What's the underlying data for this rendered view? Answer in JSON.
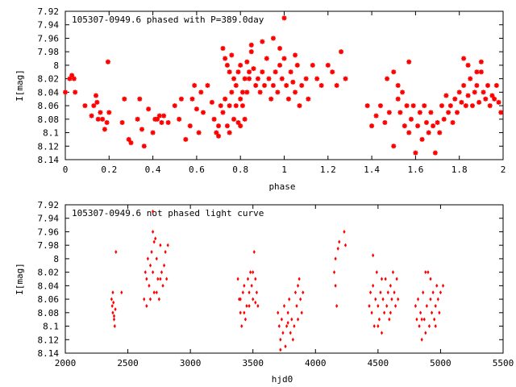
{
  "chart_data": [
    {
      "type": "scatter",
      "title": "105307-0949.6 phased with P=389.0day",
      "xlabel": "phase",
      "ylabel": "I[mag]",
      "xlim": [
        0,
        2
      ],
      "ylim": [
        8.14,
        7.92
      ],
      "y_inverted": true,
      "grid": false,
      "marker_color": "#ff0000",
      "marker": "star",
      "x_ticks": [
        "0",
        "0.2",
        "0.4",
        "0.6",
        "0.8",
        "1",
        "1.2",
        "1.4",
        "1.6",
        "1.8",
        "2"
      ],
      "y_ticks": [
        "7.92",
        "7.94",
        "7.96",
        "7.98",
        "8",
        "8.02",
        "8.04",
        "8.06",
        "8.08",
        "8.1",
        "8.12",
        "8.14"
      ],
      "points": [
        [
          0.0,
          8.04
        ],
        [
          0.02,
          8.02
        ],
        [
          0.03,
          8.015
        ],
        [
          0.04,
          8.02
        ],
        [
          0.045,
          8.04
        ],
        [
          0.09,
          8.06
        ],
        [
          0.12,
          8.075
        ],
        [
          0.13,
          8.06
        ],
        [
          0.14,
          8.045
        ],
        [
          0.145,
          8.055
        ],
        [
          0.15,
          8.08
        ],
        [
          0.16,
          8.07
        ],
        [
          0.17,
          8.08
        ],
        [
          0.18,
          8.095
        ],
        [
          0.2,
          8.07
        ],
        [
          0.19,
          8.085
        ],
        [
          0.195,
          7.995
        ],
        [
          0.26,
          8.085
        ],
        [
          0.27,
          8.05
        ],
        [
          0.29,
          8.11
        ],
        [
          0.3,
          8.115
        ],
        [
          0.33,
          8.08
        ],
        [
          0.34,
          8.05
        ],
        [
          0.35,
          8.095
        ],
        [
          0.36,
          8.12
        ],
        [
          0.38,
          8.065
        ],
        [
          0.4,
          8.1
        ],
        [
          0.41,
          8.08
        ],
        [
          0.42,
          8.08
        ],
        [
          0.43,
          8.075
        ],
        [
          0.44,
          8.085
        ],
        [
          0.45,
          8.075
        ],
        [
          0.47,
          8.085
        ],
        [
          0.5,
          8.06
        ],
        [
          0.52,
          8.08
        ],
        [
          0.53,
          8.05
        ],
        [
          0.55,
          8.11
        ],
        [
          0.57,
          8.09
        ],
        [
          0.58,
          8.05
        ],
        [
          0.59,
          8.03
        ],
        [
          0.6,
          8.065
        ],
        [
          0.61,
          8.1
        ],
        [
          0.62,
          8.04
        ],
        [
          0.63,
          8.07
        ],
        [
          0.65,
          8.03
        ],
        [
          0.67,
          8.055
        ],
        [
          0.68,
          8.08
        ],
        [
          0.69,
          8.1
        ],
        [
          0.7,
          8.105
        ],
        [
          0.71,
          8.06
        ],
        [
          0.72,
          8.07
        ],
        [
          0.73,
          8.05
        ],
        [
          0.74,
          8.09
        ],
        [
          0.75,
          8.06
        ],
        [
          0.76,
          8.04
        ],
        [
          0.77,
          8.08
        ],
        [
          0.78,
          8.06
        ],
        [
          0.79,
          8.085
        ],
        [
          0.8,
          8.05
        ],
        [
          0.81,
          8.06
        ],
        [
          0.82,
          8.08
        ],
        [
          0.83,
          8.04
        ],
        [
          0.84,
          8.02
        ],
        [
          0.72,
          7.975
        ],
        [
          0.73,
          7.99
        ],
        [
          0.74,
          8.0
        ],
        [
          0.75,
          8.01
        ],
        [
          0.76,
          7.985
        ],
        [
          0.77,
          8.02
        ],
        [
          0.78,
          8.03
        ],
        [
          0.79,
          8.01
        ],
        [
          0.8,
          8.0
        ],
        [
          0.81,
          8.04
        ],
        [
          0.82,
          8.02
        ],
        [
          0.83,
          7.995
        ],
        [
          0.84,
          8.01
        ],
        [
          0.85,
          7.98
        ],
        [
          0.86,
          8.005
        ],
        [
          0.87,
          8.03
        ],
        [
          0.88,
          8.02
        ],
        [
          0.89,
          8.04
        ],
        [
          0.9,
          8.01
        ],
        [
          0.91,
          8.03
        ],
        [
          0.92,
          7.99
        ],
        [
          0.93,
          8.02
        ],
        [
          0.94,
          8.05
        ],
        [
          0.95,
          8.03
        ],
        [
          0.96,
          8.01
        ],
        [
          0.97,
          8.04
        ],
        [
          0.98,
          8.0
        ],
        [
          0.99,
          8.02
        ],
        [
          1.0,
          7.99
        ],
        [
          1.01,
          8.03
        ],
        [
          1.02,
          8.05
        ],
        [
          1.03,
          8.01
        ],
        [
          1.04,
          8.025
        ],
        [
          1.05,
          8.04
        ],
        [
          1.06,
          8.0
        ],
        [
          1.07,
          8.06
        ],
        [
          1.08,
          8.03
        ],
        [
          1.1,
          8.02
        ],
        [
          1.11,
          8.05
        ],
        [
          1.13,
          8.0
        ],
        [
          1.15,
          8.02
        ],
        [
          1.17,
          8.03
        ],
        [
          1.2,
          8.0
        ],
        [
          1.22,
          8.01
        ],
        [
          1.24,
          8.03
        ],
        [
          1.26,
          7.98
        ],
        [
          1.28,
          8.02
        ],
        [
          0.9,
          7.965
        ],
        [
          0.85,
          7.97
        ],
        [
          0.95,
          7.96
        ],
        [
          1.0,
          7.93
        ],
        [
          1.05,
          7.985
        ],
        [
          0.98,
          7.975
        ],
        [
          0.7,
          8.09
        ],
        [
          0.75,
          8.1
        ],
        [
          0.8,
          8.09
        ],
        [
          1.38,
          8.06
        ],
        [
          1.4,
          8.09
        ],
        [
          1.42,
          8.075
        ],
        [
          1.44,
          8.06
        ],
        [
          1.46,
          8.085
        ],
        [
          1.48,
          8.07
        ],
        [
          1.5,
          8.12
        ],
        [
          1.52,
          8.05
        ],
        [
          1.53,
          8.07
        ],
        [
          1.54,
          8.04
        ],
        [
          1.55,
          8.09
        ],
        [
          1.56,
          8.06
        ],
        [
          1.57,
          8.1
        ],
        [
          1.58,
          8.08
        ],
        [
          1.59,
          8.06
        ],
        [
          1.6,
          8.13
        ],
        [
          1.61,
          8.09
        ],
        [
          1.62,
          8.07
        ],
        [
          1.63,
          8.11
        ],
        [
          1.64,
          8.06
        ],
        [
          1.65,
          8.085
        ],
        [
          1.66,
          8.1
        ],
        [
          1.67,
          8.07
        ],
        [
          1.68,
          8.09
        ],
        [
          1.69,
          8.13
        ],
        [
          1.7,
          8.085
        ],
        [
          1.71,
          8.1
        ],
        [
          1.72,
          8.06
        ],
        [
          1.73,
          8.08
        ],
        [
          1.74,
          8.045
        ],
        [
          1.75,
          8.07
        ],
        [
          1.76,
          8.06
        ],
        [
          1.77,
          8.085
        ],
        [
          1.78,
          8.05
        ],
        [
          1.79,
          8.07
        ],
        [
          1.8,
          8.04
        ],
        [
          1.81,
          8.055
        ],
        [
          1.82,
          8.03
        ],
        [
          1.83,
          8.06
        ],
        [
          1.84,
          8.045
        ],
        [
          1.85,
          8.02
        ],
        [
          1.86,
          8.06
        ],
        [
          1.87,
          8.04
        ],
        [
          1.88,
          8.03
        ],
        [
          1.89,
          8.055
        ],
        [
          1.9,
          8.01
        ],
        [
          1.91,
          8.04
        ],
        [
          1.92,
          8.05
        ],
        [
          1.93,
          8.03
        ],
        [
          1.94,
          8.06
        ],
        [
          1.95,
          8.045
        ],
        [
          1.96,
          8.05
        ],
        [
          1.97,
          8.03
        ],
        [
          1.98,
          8.055
        ],
        [
          1.99,
          8.07
        ],
        [
          1.82,
          7.99
        ],
        [
          1.84,
          8.0
        ],
        [
          1.88,
          8.01
        ],
        [
          1.9,
          7.995
        ],
        [
          1.57,
          7.995
        ],
        [
          1.5,
          8.01
        ],
        [
          1.47,
          8.02
        ],
        [
          1.52,
          8.03
        ]
      ]
    },
    {
      "type": "scatter",
      "title": "105307-0949.6 not phased light curve",
      "xlabel": "hjd0",
      "ylabel": "I[mag]",
      "xlim": [
        2000,
        5500
      ],
      "ylim": [
        8.14,
        7.92
      ],
      "y_inverted": true,
      "grid": false,
      "marker_color": "#ff0000",
      "marker": "diamond",
      "x_ticks": [
        "2000",
        "2500",
        "3000",
        "3500",
        "4000",
        "4500",
        "5000",
        "5500"
      ],
      "y_ticks": [
        "7.92",
        "7.94",
        "7.96",
        "7.98",
        "8",
        "8.02",
        "8.04",
        "8.06",
        "8.08",
        "8.1",
        "8.12",
        "8.14"
      ],
      "points": [
        [
          2370,
          8.06
        ],
        [
          2375,
          8.07
        ],
        [
          2380,
          8.08
        ],
        [
          2385,
          8.065
        ],
        [
          2390,
          8.09
        ],
        [
          2395,
          8.1
        ],
        [
          2400,
          8.075
        ],
        [
          2405,
          7.99
        ],
        [
          2380,
          8.05
        ],
        [
          2390,
          8.085
        ],
        [
          2450,
          8.05
        ],
        [
          2630,
          8.06
        ],
        [
          2640,
          8.02
        ],
        [
          2650,
          8.03
        ],
        [
          2660,
          8.0
        ],
        [
          2670,
          8.04
        ],
        [
          2680,
          8.01
        ],
        [
          2690,
          7.99
        ],
        [
          2700,
          8.02
        ],
        [
          2710,
          8.05
        ],
        [
          2720,
          7.97
        ],
        [
          2730,
          8.0
        ],
        [
          2740,
          8.03
        ],
        [
          2750,
          8.06
        ],
        [
          2760,
          7.98
        ],
        [
          2770,
          8.02
        ],
        [
          2780,
          8.04
        ],
        [
          2790,
          8.01
        ],
        [
          2800,
          7.99
        ],
        [
          2810,
          8.03
        ],
        [
          2820,
          7.98
        ],
        [
          2650,
          8.07
        ],
        [
          2680,
          8.06
        ],
        [
          2700,
          7.96
        ],
        [
          2710,
          7.975
        ],
        [
          2730,
          8.05
        ],
        [
          2760,
          8.03
        ],
        [
          2700,
          7.93
        ],
        [
          3380,
          8.03
        ],
        [
          3390,
          8.06
        ],
        [
          3400,
          8.08
        ],
        [
          3410,
          8.1
        ],
        [
          3420,
          8.05
        ],
        [
          3430,
          8.04
        ],
        [
          3440,
          8.09
        ],
        [
          3450,
          8.07
        ],
        [
          3460,
          8.03
        ],
        [
          3470,
          8.05
        ],
        [
          3480,
          8.02
        ],
        [
          3490,
          8.04
        ],
        [
          3500,
          8.06
        ],
        [
          3510,
          7.99
        ],
        [
          3520,
          8.03
        ],
        [
          3530,
          8.05
        ],
        [
          3540,
          8.07
        ],
        [
          3400,
          8.06
        ],
        [
          3430,
          8.08
        ],
        [
          3470,
          8.07
        ],
        [
          3500,
          8.02
        ],
        [
          3520,
          8.065
        ],
        [
          3700,
          8.08
        ],
        [
          3710,
          8.1
        ],
        [
          3720,
          8.12
        ],
        [
          3730,
          8.09
        ],
        [
          3740,
          8.11
        ],
        [
          3750,
          8.07
        ],
        [
          3760,
          8.13
        ],
        [
          3770,
          8.1
        ],
        [
          3780,
          8.08
        ],
        [
          3790,
          8.06
        ],
        [
          3800,
          8.11
        ],
        [
          3810,
          8.09
        ],
        [
          3820,
          8.12
        ],
        [
          3830,
          8.1
        ],
        [
          3840,
          8.05
        ],
        [
          3850,
          8.07
        ],
        [
          3860,
          8.04
        ],
        [
          3870,
          8.03
        ],
        [
          3880,
          8.06
        ],
        [
          3890,
          8.08
        ],
        [
          3900,
          8.05
        ],
        [
          3720,
          8.135
        ],
        [
          3780,
          8.095
        ],
        [
          3860,
          8.09
        ],
        [
          4150,
          8.02
        ],
        [
          4160,
          8.04
        ],
        [
          4170,
          8.07
        ],
        [
          4180,
          7.985
        ],
        [
          4190,
          7.975
        ],
        [
          4230,
          7.96
        ],
        [
          4240,
          7.98
        ],
        [
          4160,
          8.0
        ],
        [
          4430,
          8.07
        ],
        [
          4440,
          8.05
        ],
        [
          4450,
          8.08
        ],
        [
          4460,
          8.04
        ],
        [
          4470,
          8.1
        ],
        [
          4480,
          8.06
        ],
        [
          4490,
          8.02
        ],
        [
          4500,
          8.07
        ],
        [
          4510,
          8.09
        ],
        [
          4520,
          8.05
        ],
        [
          4530,
          8.11
        ],
        [
          4540,
          8.06
        ],
        [
          4550,
          8.08
        ],
        [
          4560,
          8.03
        ],
        [
          4570,
          8.07
        ],
        [
          4580,
          8.05
        ],
        [
          4590,
          8.09
        ],
        [
          4600,
          8.04
        ],
        [
          4610,
          8.06
        ],
        [
          4620,
          8.02
        ],
        [
          4630,
          8.05
        ],
        [
          4640,
          8.07
        ],
        [
          4650,
          8.03
        ],
        [
          4660,
          8.06
        ],
        [
          4460,
          7.995
        ],
        [
          4530,
          8.03
        ],
        [
          4600,
          8.08
        ],
        [
          4500,
          8.1
        ],
        [
          4800,
          8.07
        ],
        [
          4810,
          8.09
        ],
        [
          4820,
          8.06
        ],
        [
          4830,
          8.1
        ],
        [
          4840,
          8.08
        ],
        [
          4850,
          8.12
        ],
        [
          4860,
          8.05
        ],
        [
          4870,
          8.09
        ],
        [
          4880,
          8.11
        ],
        [
          4890,
          8.07
        ],
        [
          4900,
          8.02
        ],
        [
          4910,
          8.1
        ],
        [
          4920,
          8.06
        ],
        [
          4930,
          8.08
        ],
        [
          4940,
          8.05
        ],
        [
          4950,
          8.09
        ],
        [
          4960,
          8.07
        ],
        [
          4970,
          8.04
        ],
        [
          4980,
          8.06
        ],
        [
          4990,
          8.08
        ],
        [
          5000,
          8.05
        ],
        [
          5020,
          8.04
        ],
        [
          4880,
          8.02
        ],
        [
          4920,
          8.03
        ],
        [
          4960,
          8.1
        ],
        [
          4850,
          8.09
        ]
      ]
    }
  ]
}
